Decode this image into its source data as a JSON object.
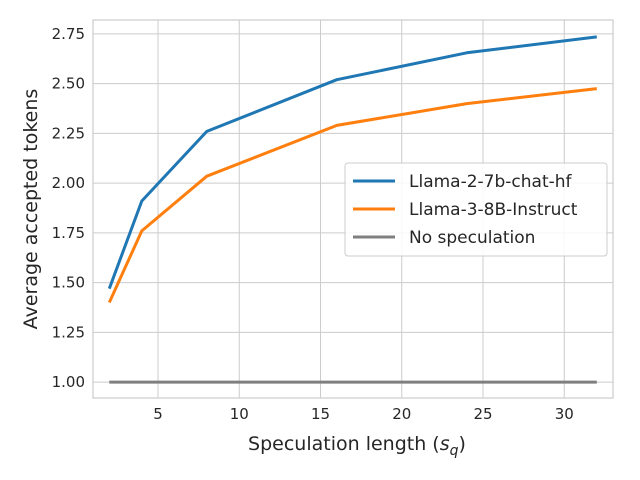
{
  "chart_data": {
    "type": "line",
    "title": "",
    "xlabel": "Speculation length",
    "xlabel_symbol": "s",
    "xlabel_subscript": "q",
    "ylabel": "Average accepted tokens",
    "xlim": [
      1.0,
      33.0
    ],
    "ylim": [
      0.92,
      2.82
    ],
    "xticks": [
      5,
      10,
      15,
      20,
      25,
      30
    ],
    "yticks": [
      "1.00",
      "1.25",
      "1.50",
      "1.75",
      "2.00",
      "2.25",
      "2.50",
      "2.75"
    ],
    "grid": true,
    "legend_position": "center-right",
    "series": [
      {
        "name": "Llama-2-7b-chat-hf",
        "color": "#1f77b4",
        "x": [
          2,
          4,
          8,
          16,
          24,
          32
        ],
        "y": [
          1.47,
          1.91,
          2.26,
          2.52,
          2.655,
          2.735
        ]
      },
      {
        "name": "Llama-3-8B-Instruct",
        "color": "#ff7f0e",
        "x": [
          2,
          4,
          8,
          16,
          24,
          32
        ],
        "y": [
          1.4,
          1.76,
          2.035,
          2.29,
          2.4,
          2.475
        ]
      },
      {
        "name": "No speculation",
        "color": "#7f7f7f",
        "x": [
          2,
          4,
          8,
          16,
          24,
          32
        ],
        "y": [
          1.0,
          1.0,
          1.0,
          1.0,
          1.0,
          1.0
        ]
      }
    ]
  }
}
